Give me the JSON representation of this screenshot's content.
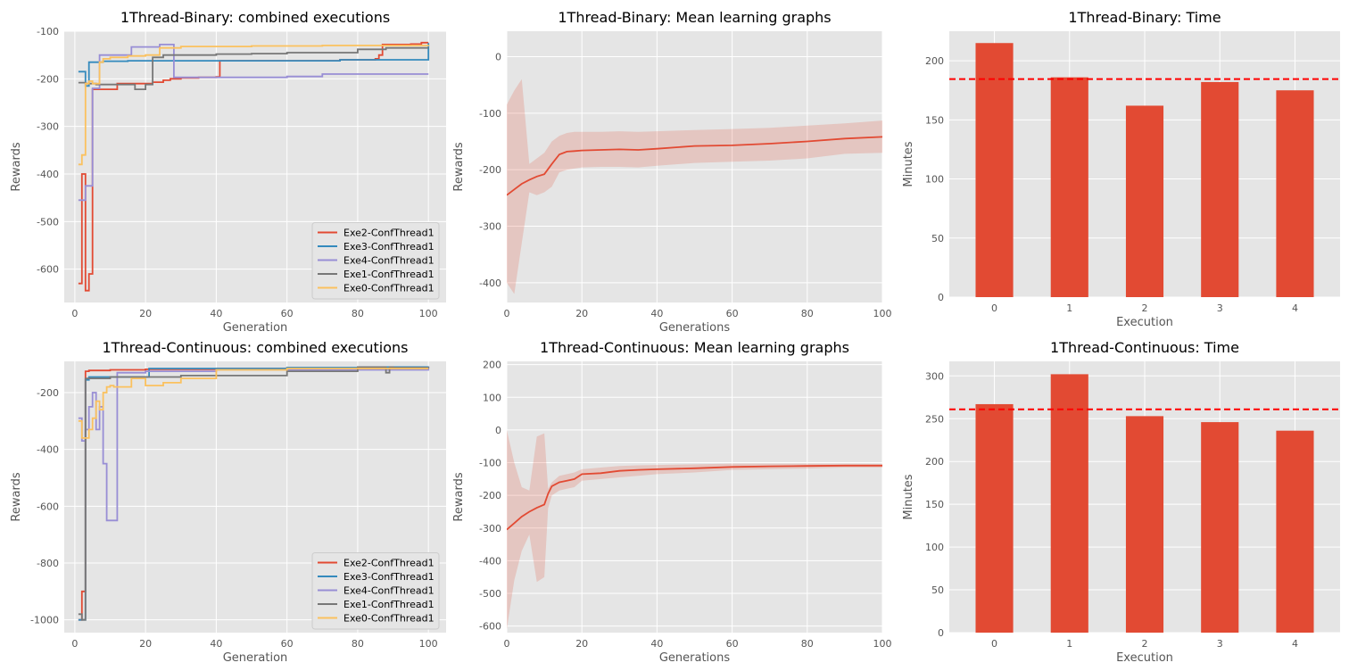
{
  "chart_data": [
    {
      "type": "line",
      "title": "1Thread-Binary: combined executions",
      "xlabel": "Generation",
      "ylabel": "Rewards",
      "xlim": [
        -3,
        105
      ],
      "ylim": [
        -670,
        -100
      ],
      "xticks": [
        0,
        20,
        40,
        60,
        80,
        100
      ],
      "yticks": [
        -600,
        -500,
        -400,
        -300,
        -200,
        -100
      ],
      "grid": true,
      "legend": "bottom-right",
      "series": [
        {
          "name": "Exe2-ConfThread1",
          "color": "#E24A33",
          "step": true,
          "x": [
            1,
            2,
            3,
            4,
            5,
            6,
            10,
            12,
            20,
            22,
            25,
            27,
            30,
            35,
            40,
            41,
            60,
            75,
            85,
            86,
            87,
            88,
            95,
            98,
            100
          ],
          "y": [
            -630,
            -400,
            -645,
            -610,
            -222,
            -222,
            -222,
            -210,
            -210,
            -207,
            -203,
            -200,
            -198,
            -197,
            -196,
            -162,
            -162,
            -160,
            -158,
            -150,
            -128,
            -128,
            -127,
            -124,
            -124
          ]
        },
        {
          "name": "Exe3-ConfThread1",
          "color": "#348ABD",
          "step": true,
          "x": [
            1,
            2,
            3,
            4,
            5,
            8,
            15,
            40,
            75,
            100
          ],
          "y": [
            -185,
            -185,
            -215,
            -165,
            -165,
            -163,
            -162,
            -162,
            -160,
            -125
          ]
        },
        {
          "name": "Exe4-ConfThread1",
          "color": "#988ED5",
          "step": true,
          "x": [
            1,
            2,
            3,
            4,
            5,
            7,
            8,
            16,
            24,
            27,
            28,
            30,
            40,
            60,
            70,
            100
          ],
          "y": [
            -455,
            -455,
            -425,
            -425,
            -220,
            -150,
            -150,
            -133,
            -128,
            -128,
            -197,
            -197,
            -197,
            -195,
            -190,
            -190
          ]
        },
        {
          "name": "Exe1-ConfThread1",
          "color": "#777777",
          "step": true,
          "x": [
            1,
            2,
            3,
            5,
            6,
            8,
            10,
            16,
            17,
            19,
            20,
            22,
            25,
            30,
            40,
            50,
            60,
            80,
            88,
            100
          ],
          "y": [
            -208,
            -208,
            -210,
            -210,
            -212,
            -212,
            -212,
            -212,
            -222,
            -222,
            -212,
            -155,
            -150,
            -150,
            -148,
            -147,
            -145,
            -138,
            -135,
            -135
          ]
        },
        {
          "name": "Exe0-ConfThread1",
          "color": "#FBC15E",
          "step": true,
          "x": [
            1,
            2,
            3,
            4,
            5,
            6,
            7,
            8,
            10,
            15,
            20,
            24,
            30,
            50,
            70,
            100
          ],
          "y": [
            -380,
            -360,
            -210,
            -205,
            -210,
            -210,
            -165,
            -158,
            -155,
            -152,
            -150,
            -135,
            -132,
            -131,
            -130,
            -129
          ]
        }
      ]
    },
    {
      "type": "area",
      "title": "1Thread-Binary: Mean learning graphs",
      "xlabel": "Generations",
      "ylabel": "Rewards",
      "xlim": [
        0,
        100
      ],
      "ylim": [
        -435,
        45
      ],
      "xticks": [
        0,
        20,
        40,
        60,
        80,
        100
      ],
      "yticks": [
        -400,
        -300,
        -200,
        -100,
        0
      ],
      "grid": true,
      "series": [
        {
          "name": "",
          "color": "#E24A33",
          "x": [
            0,
            2,
            4,
            6,
            8,
            10,
            12,
            14,
            16,
            18,
            20,
            25,
            30,
            35,
            40,
            50,
            60,
            70,
            80,
            90,
            100
          ],
          "y": [
            -245,
            -235,
            -225,
            -218,
            -212,
            -208,
            -190,
            -173,
            -168,
            -167,
            -166,
            -165,
            -164,
            -165,
            -163,
            -158,
            -157,
            -154,
            -150,
            -145,
            -142
          ],
          "upper": [
            -85,
            -60,
            -40,
            -190,
            -180,
            -170,
            -150,
            -140,
            -135,
            -133,
            -133,
            -133,
            -132,
            -133,
            -132,
            -130,
            -128,
            -126,
            -122,
            -118,
            -113
          ],
          "lower": [
            -400,
            -420,
            -330,
            -240,
            -245,
            -240,
            -230,
            -205,
            -200,
            -198,
            -196,
            -195,
            -195,
            -196,
            -193,
            -188,
            -186,
            -184,
            -180,
            -172,
            -170
          ]
        }
      ]
    },
    {
      "type": "bar",
      "title": "1Thread-Binary: Time",
      "xlabel": "Execution",
      "ylabel": "Minutes",
      "categories": [
        "0",
        "1",
        "2",
        "3",
        "4"
      ],
      "values": [
        215,
        186,
        162,
        182,
        175
      ],
      "mean_line": 184.5,
      "color": "#E24A33",
      "mean_color": "#ff0000",
      "ylim": [
        0,
        225
      ],
      "yticks": [
        0,
        50,
        100,
        150,
        200
      ],
      "grid": true
    },
    {
      "type": "line",
      "title": "1Thread-Continuous: combined executions",
      "xlabel": "Generation",
      "ylabel": "Rewards",
      "xlim": [
        -3,
        105
      ],
      "ylim": [
        -1045,
        -90
      ],
      "xticks": [
        0,
        20,
        40,
        60,
        80,
        100
      ],
      "yticks": [
        -1000,
        -800,
        -600,
        -400,
        -200
      ],
      "grid": true,
      "legend": "bottom-right",
      "series": [
        {
          "name": "Exe2-ConfThread1",
          "color": "#E24A33",
          "step": true,
          "x": [
            1,
            2,
            3,
            4,
            10,
            20,
            40,
            60,
            80,
            100
          ],
          "y": [
            -1000,
            -900,
            -125,
            -122,
            -120,
            -118,
            -115,
            -113,
            -110,
            -108
          ]
        },
        {
          "name": "Exe3-ConfThread1",
          "color": "#348ABD",
          "step": true,
          "x": [
            1,
            2,
            3,
            4,
            5,
            11,
            12,
            20,
            21,
            40,
            60,
            80,
            100
          ],
          "y": [
            -1000,
            -1000,
            -155,
            -145,
            -145,
            -145,
            -145,
            -145,
            -115,
            -115,
            -112,
            -110,
            -108
          ]
        },
        {
          "name": "Exe4-ConfThread1",
          "color": "#988ED5",
          "step": true,
          "x": [
            1,
            2,
            3,
            4,
            5,
            6,
            7,
            8,
            9,
            10,
            11,
            12,
            13,
            20,
            40,
            100
          ],
          "y": [
            -290,
            -370,
            -330,
            -250,
            -200,
            -330,
            -250,
            -450,
            -650,
            -650,
            -650,
            -130,
            -130,
            -125,
            -120,
            -112
          ]
        },
        {
          "name": "Exe1-ConfThread1",
          "color": "#777777",
          "step": true,
          "x": [
            1,
            2,
            3,
            4,
            10,
            30,
            60,
            80,
            88,
            89,
            90,
            100
          ],
          "y": [
            -980,
            -1000,
            -150,
            -150,
            -145,
            -140,
            -125,
            -110,
            -130,
            -110,
            -112,
            -110
          ]
        },
        {
          "name": "Exe0-ConfThread1",
          "color": "#FBC15E",
          "step": true,
          "x": [
            1,
            2,
            3,
            4,
            5,
            6,
            7,
            8,
            9,
            10,
            11,
            12,
            14,
            16,
            20,
            25,
            30,
            38,
            40,
            60,
            100
          ],
          "y": [
            -300,
            -360,
            -360,
            -330,
            -290,
            -230,
            -260,
            -200,
            -180,
            -175,
            -180,
            -180,
            -180,
            -150,
            -175,
            -165,
            -150,
            -150,
            -120,
            -115,
            -115
          ]
        }
      ]
    },
    {
      "type": "area",
      "title": "1Thread-Continuous: Mean learning graphs",
      "xlabel": "Generations",
      "ylabel": "Rewards",
      "xlim": [
        0,
        100
      ],
      "ylim": [
        -620,
        210
      ],
      "xticks": [
        0,
        20,
        40,
        60,
        80,
        100
      ],
      "yticks": [
        -600,
        -500,
        -400,
        -300,
        -200,
        -100,
        0,
        100,
        200
      ],
      "grid": true,
      "series": [
        {
          "name": "",
          "color": "#E24A33",
          "x": [
            0,
            2,
            4,
            6,
            8,
            10,
            11,
            12,
            14,
            16,
            18,
            20,
            25,
            30,
            35,
            40,
            50,
            60,
            70,
            80,
            90,
            100
          ],
          "y": [
            -305,
            -285,
            -265,
            -250,
            -238,
            -228,
            -195,
            -172,
            -160,
            -155,
            -150,
            -135,
            -132,
            -125,
            -122,
            -120,
            -117,
            -113,
            -111,
            -110,
            -109,
            -109
          ],
          "upper": [
            0,
            -100,
            -175,
            -185,
            -20,
            -10,
            -180,
            -160,
            -140,
            -135,
            -130,
            -120,
            -115,
            -110,
            -108,
            -107,
            -105,
            -103,
            -103,
            -103,
            -103,
            -104
          ],
          "lower": [
            -610,
            -460,
            -370,
            -320,
            -465,
            -450,
            -240,
            -200,
            -185,
            -180,
            -175,
            -155,
            -150,
            -145,
            -140,
            -135,
            -130,
            -122,
            -120,
            -118,
            -115,
            -115
          ]
        }
      ]
    },
    {
      "type": "bar",
      "title": "1Thread-Continuous: Time",
      "xlabel": "Execution",
      "ylabel": "Minutes",
      "categories": [
        "0",
        "1",
        "2",
        "3",
        "4"
      ],
      "values": [
        267,
        302,
        253,
        246,
        236
      ],
      "mean_line": 261,
      "color": "#E24A33",
      "mean_color": "#ff0000",
      "ylim": [
        0,
        317
      ],
      "yticks": [
        0,
        50,
        100,
        150,
        200,
        250,
        300
      ],
      "grid": true
    }
  ]
}
